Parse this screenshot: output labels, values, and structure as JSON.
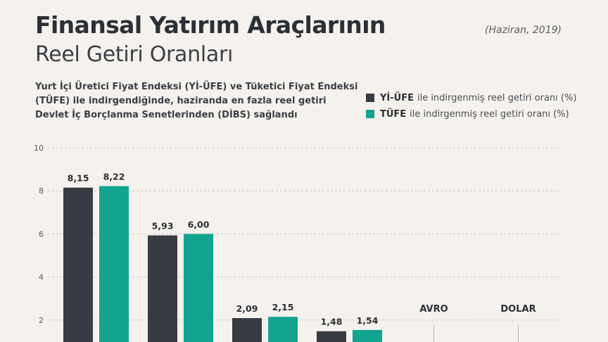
{
  "title_line1": "Finansal Yatırım Araçlarının",
  "title_line2": "Reel Getiri Oranları",
  "date": "(Haziran, 2019)",
  "subtitle_lines": [
    "Yurt İçi Üretici Fiyat Endeksi (Yİ-ÜFE) ve Tüketici Fiyat Endeksi",
    "(TÜFE) ile indirgendiğinde, haziranda en fazla reel getiri",
    "Devlet İç Borçlanma Senetlerinden (DİBS) sağlandı"
  ],
  "legend": [
    {
      "key": "Yİ-ÜFE",
      "text": "ile indirgenmiş reel getiri oranı (%)",
      "color": "#373b43"
    },
    {
      "key": "TÜFE",
      "text": "ile indirgenmiş reel getiri oranı (%)",
      "color": "#12a391"
    }
  ],
  "chart_data": {
    "type": "bar",
    "title": "Finansal Yatırım Araçlarının Reel Getiri Oranları",
    "categories": [
      "",
      "",
      "",
      "",
      "AVRO",
      "DOLAR"
    ],
    "series": [
      {
        "name": "Yİ-ÜFE ile indirgenmiş reel getiri oranı (%)",
        "color": "#373b43",
        "values": [
          8.15,
          5.93,
          2.09,
          1.48,
          null,
          null
        ],
        "labels": [
          "8,15",
          "5,93",
          "2,09",
          "1,48",
          "",
          ""
        ]
      },
      {
        "name": "TÜFE ile indirgenmiş reel getiri oranı (%)",
        "color": "#12a391",
        "values": [
          8.22,
          6.0,
          2.15,
          1.54,
          null,
          null
        ],
        "labels": [
          "8,22",
          "6,00",
          "2,15",
          "1,54",
          "",
          ""
        ]
      }
    ],
    "yticks": [
      2,
      4,
      6,
      8,
      10
    ],
    "ylim": [
      0,
      10
    ],
    "grid": true
  }
}
